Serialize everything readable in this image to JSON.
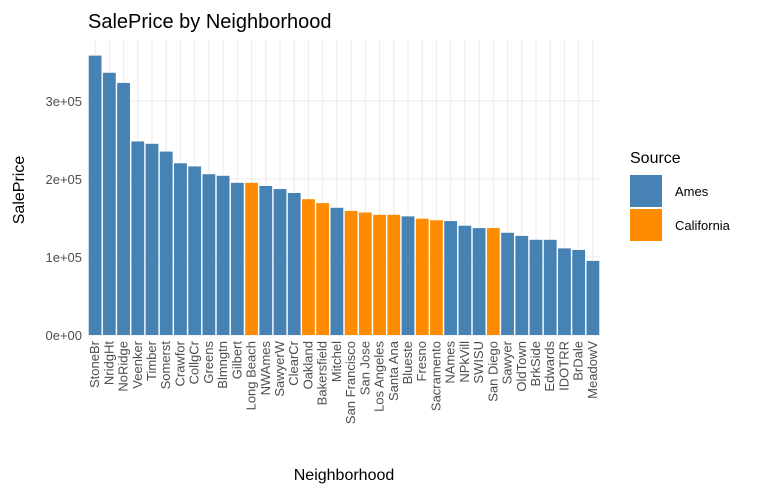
{
  "chart_data": {
    "type": "bar",
    "title": "SalePrice by Neighborhood",
    "x_label": "Neighborhood",
    "y_label": "SalePrice",
    "legend_title": "Source",
    "categories": [
      "StoneBr",
      "NridgHt",
      "NoRidge",
      "Veenker",
      "Timber",
      "Somerst",
      "Crawfor",
      "CollgCr",
      "Greens",
      "Blmngtn",
      "Gilbert",
      "Long Beach",
      "NWAmes",
      "SawyerW",
      "ClearCr",
      "Oakland",
      "Bakersfield",
      "Mitchel",
      "San Francisco",
      "San Jose",
      "Los Angeles",
      "Santa Ana",
      "Blueste",
      "Fresno",
      "Sacramento",
      "NAmes",
      "NPkVill",
      "SWISU",
      "San Diego",
      "Sawyer",
      "OldTown",
      "BrkSide",
      "Edwards",
      "IDOTRR",
      "BrDale",
      "MeadowV"
    ],
    "series": [
      {
        "name": "Ames",
        "color": "#4682b4",
        "values": [
          358000,
          336000,
          323000,
          248000,
          245000,
          235000,
          220000,
          216000,
          206000,
          204000,
          195000,
          null,
          191000,
          187000,
          182000,
          null,
          null,
          163000,
          null,
          null,
          null,
          null,
          152000,
          null,
          null,
          146000,
          140000,
          137000,
          null,
          131000,
          127000,
          122000,
          122000,
          111000,
          109000,
          95000
        ]
      },
      {
        "name": "California",
        "color": "#ff8c00",
        "values": [
          null,
          null,
          null,
          null,
          null,
          null,
          null,
          null,
          null,
          null,
          null,
          195000,
          null,
          null,
          null,
          174000,
          169000,
          null,
          159000,
          157000,
          154000,
          154000,
          null,
          149000,
          147000,
          null,
          null,
          null,
          137000,
          null,
          null,
          null,
          null,
          null,
          null,
          null
        ]
      }
    ],
    "ylim": [
      0,
      378000
    ],
    "yticks": [
      {
        "value": 0,
        "label": "0e+00"
      },
      {
        "value": 100000,
        "label": "1e+05"
      },
      {
        "value": 200000,
        "label": "2e+05"
      },
      {
        "value": 300000,
        "label": "3e+05"
      }
    ],
    "grid": true,
    "legend": "right"
  }
}
